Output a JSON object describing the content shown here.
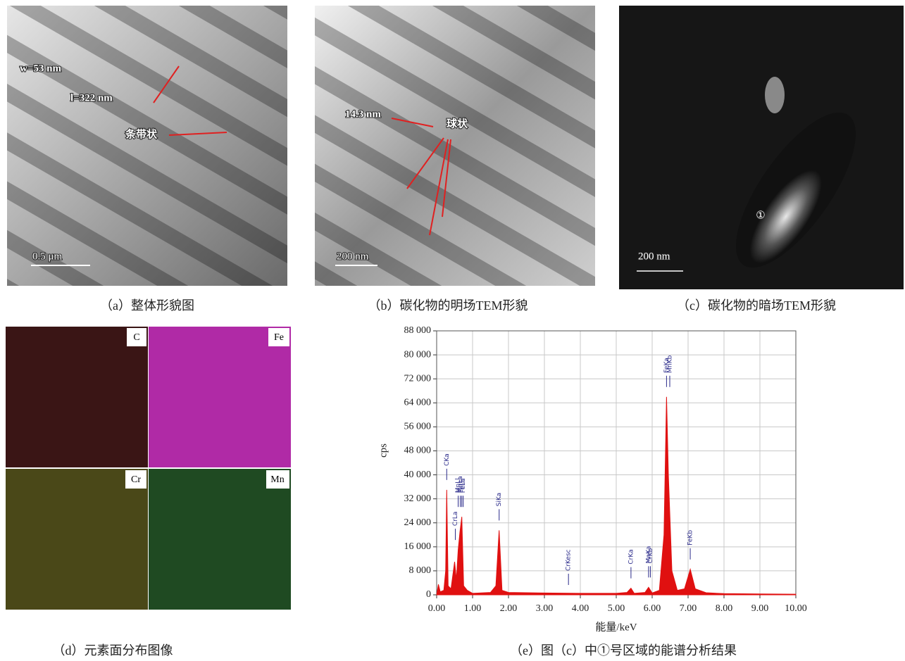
{
  "panels": {
    "a": {
      "caption": "（a）整体形貌图",
      "annotations": [
        "w=53 nm",
        "l=322 nm",
        "条带状"
      ],
      "scale_bar": "0.5 μm"
    },
    "b": {
      "caption": "（b）碳化物的明场TEM形貌",
      "annotations": [
        "14.3 nm",
        "球状"
      ],
      "scale_bar": "200 nm"
    },
    "c": {
      "caption": "（c）碳化物的暗场TEM形貌",
      "annotations": [
        "①"
      ],
      "scale_bar": "200 nm"
    },
    "d": {
      "caption": "（d）元素面分布图像",
      "maps": [
        "C",
        "Fe",
        "Cr",
        "Mn"
      ]
    },
    "e": {
      "caption": "（e）图（c）中①号区域的能谱分析结果"
    }
  },
  "chart_data": {
    "type": "area",
    "xlabel": "能量/keV",
    "ylabel": "cps",
    "color": "#e01010",
    "grid": true,
    "x": [
      0,
      0.05,
      0.1,
      0.2,
      0.25,
      0.28,
      0.32,
      0.4,
      0.5,
      0.55,
      0.6,
      0.65,
      0.7,
      0.75,
      0.85,
      1.0,
      1.5,
      1.65,
      1.74,
      1.82,
      2.0,
      3,
      4,
      5,
      5.3,
      5.41,
      5.5,
      5.8,
      5.9,
      6.0,
      6.2,
      6.33,
      6.4,
      6.45,
      6.55,
      6.7,
      6.9,
      7.06,
      7.2,
      7.5,
      8,
      9,
      10
    ],
    "values": [
      0,
      3500,
      1000,
      1500,
      8000,
      35000,
      3000,
      2000,
      11000,
      5000,
      15000,
      21000,
      26000,
      3000,
      1500,
      500,
      800,
      3000,
      21500,
      1500,
      800,
      600,
      500,
      500,
      800,
      2200,
      500,
      800,
      2500,
      600,
      1500,
      20000,
      66000,
      40000,
      8000,
      1500,
      2000,
      8500,
      2000,
      700,
      400,
      300,
      200
    ],
    "xlim": [
      0,
      10
    ],
    "ylim": [
      0,
      88000
    ],
    "xticks": [
      {
        "value": 0,
        "label": "0.00"
      },
      {
        "value": 1,
        "label": "1.00"
      },
      {
        "value": 2,
        "label": "2.00"
      },
      {
        "value": 3,
        "label": "3.00"
      },
      {
        "value": 4,
        "label": "4.00"
      },
      {
        "value": 5,
        "label": "5.00"
      },
      {
        "value": 6,
        "label": "6.00"
      },
      {
        "value": 7,
        "label": "7.00"
      },
      {
        "value": 8,
        "label": "8.00"
      },
      {
        "value": 9,
        "label": "9.00"
      },
      {
        "value": 10,
        "label": "10.00"
      }
    ],
    "yticks": [
      0,
      {
        "value": 8000,
        "label": "8 000"
      },
      {
        "value": 16000,
        "label": "16 000"
      },
      {
        "value": 24000,
        "label": "24 000"
      },
      {
        "value": 32000,
        "label": "32 000"
      },
      {
        "value": 40000,
        "label": "40 000"
      },
      {
        "value": 48000,
        "label": "48 000"
      },
      {
        "value": 56000,
        "label": "56 000"
      },
      {
        "value": 64000,
        "label": "64 000"
      },
      {
        "value": 72000,
        "label": "72 000"
      },
      {
        "value": 80000,
        "label": "80 000"
      },
      {
        "value": 88000,
        "label": "88 000"
      }
    ],
    "peak_labels": [
      {
        "text": "CKa",
        "x": 0.28
      },
      {
        "text": "CrLa",
        "x": 0.52
      },
      {
        "text": "MnLl",
        "x": 0.6
      },
      {
        "text": "MnLa",
        "x": 0.66
      },
      {
        "text": "FeLl",
        "x": 0.7
      },
      {
        "text": "FeLa",
        "x": 0.74
      },
      {
        "text": "SiKa",
        "x": 1.74
      },
      {
        "text": "CrKesc",
        "x": 3.67
      },
      {
        "text": "CrKa",
        "x": 5.41
      },
      {
        "text": "CrKb",
        "x": 5.95
      },
      {
        "text": "MnKa",
        "x": 5.9
      },
      {
        "text": "MnKb",
        "x": 6.49
      },
      {
        "text": "FeKa",
        "x": 6.4
      },
      {
        "text": "FeKb",
        "x": 7.06
      }
    ]
  }
}
